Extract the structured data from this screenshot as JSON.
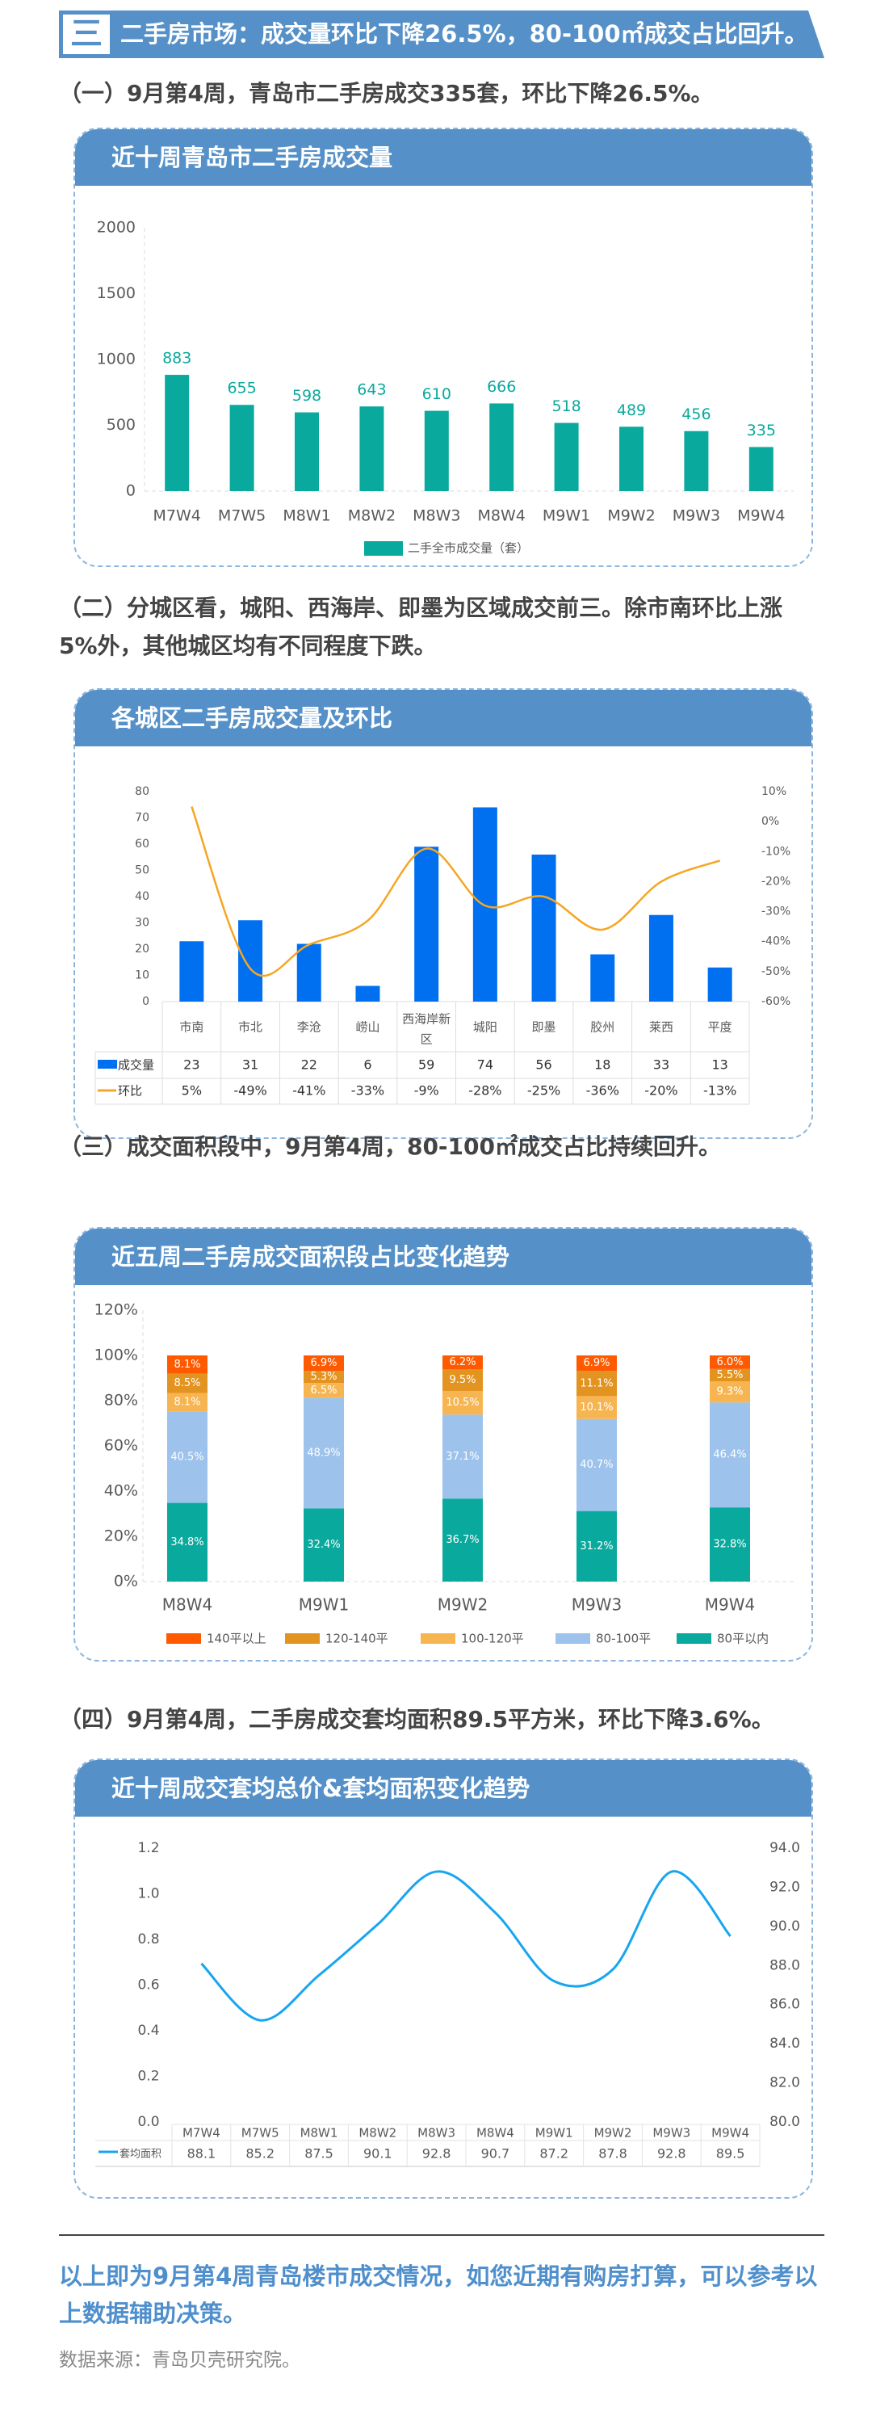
{
  "banner": {
    "number": "三",
    "title": "二手房市场：成交量环比下降26.5%，80-100㎡成交占比回升。"
  },
  "sections": [
    {
      "text": "（一）9月第4周，青岛市二手房成交335套，环比下降26.5%。",
      "card_title": "近十周青岛市二手房成交量"
    },
    {
      "text": "（二）分城区看，城阳、西海岸、即墨为区域成交前三。除市南环比上涨5%外，其他城区均有不同程度下跌。",
      "card_title": "各城区二手房成交量及环比"
    },
    {
      "text": "（三）成交面积段中，9月第4周，80-100㎡成交占比持续回升。",
      "card_title": "近五周二手房成交面积段占比变化趋势"
    },
    {
      "text": "（四）9月第4周，二手房成交套均面积89.5平方米，环比下降3.6%。",
      "card_title": "近十周成交套均总价&套均面积变化趋势"
    }
  ],
  "footer": {
    "conclusion": "以上即为9月第4周青岛楼市成交情况，如您近期有购房打算，可以参考以上数据辅助决策。",
    "source": "数据来源：青岛贝壳研究院。"
  },
  "colors": {
    "brand": "#5591c8",
    "teal": "#0aa99d",
    "blue": "#0070f0",
    "orange": "#f5a623",
    "line": "#18a5f0"
  },
  "chart_data": [
    {
      "type": "bar",
      "title": "近十周青岛市二手房成交量",
      "categories": [
        "M7W4",
        "M7W5",
        "M8W1",
        "M8W2",
        "M8W3",
        "M8W4",
        "M9W1",
        "M9W2",
        "M9W3",
        "M9W4"
      ],
      "series": [
        {
          "name": "二手全市成交量（套）",
          "values": [
            883,
            655,
            598,
            643,
            610,
            666,
            518,
            489,
            456,
            335
          ]
        }
      ],
      "yticks": [
        "0",
        "500",
        "1000",
        "1500",
        "2000"
      ],
      "ylim": [
        0,
        2000
      ],
      "legend": "bottom"
    },
    {
      "type": "bar",
      "title": "各城区二手房成交量及环比",
      "categories": [
        "市南",
        "市北",
        "李沧",
        "崂山",
        "西海岸新区",
        "城阳",
        "即墨",
        "胶州",
        "莱西",
        "平度"
      ],
      "series": [
        {
          "name": "成交量",
          "values": [
            23,
            31,
            22,
            6,
            59,
            74,
            56,
            18,
            33,
            13
          ]
        },
        {
          "name": "环比",
          "type": "line",
          "values": [
            5,
            -49,
            -41,
            -33,
            -9,
            -28,
            -25,
            -36,
            -20,
            -13
          ],
          "labels": [
            "5%",
            "-49%",
            "-41%",
            "-33%",
            "-9%",
            "-28%",
            "-25%",
            "-36%",
            "-20%",
            "-13%"
          ]
        }
      ],
      "yticks": [
        "0",
        "10",
        "20",
        "30",
        "40",
        "50",
        "60",
        "70",
        "80"
      ],
      "ylim": [
        0,
        80
      ],
      "y2ticks": [
        "10%",
        "0%",
        "-10%",
        "-20%",
        "-30%",
        "-40%",
        "-50%",
        "-60%"
      ],
      "y2lim": [
        -60,
        10
      ],
      "legend": "table"
    },
    {
      "type": "bar",
      "stacked": true,
      "title": "近五周二手房成交面积段占比变化趋势",
      "categories": [
        "M8W4",
        "M9W1",
        "M9W2",
        "M9W3",
        "M9W4"
      ],
      "series": [
        {
          "name": "80平以内",
          "values": [
            34.8,
            32.4,
            36.7,
            31.2,
            32.8
          ],
          "color": "#0aa99d"
        },
        {
          "name": "80-100平",
          "values": [
            40.5,
            48.9,
            37.1,
            40.7,
            46.4
          ],
          "color": "#9dc3ec"
        },
        {
          "name": "100-120平",
          "values": [
            8.1,
            6.5,
            10.5,
            10.1,
            9.3
          ],
          "color": "#f7b552"
        },
        {
          "name": "120-140平",
          "values": [
            8.5,
            5.3,
            9.5,
            11.1,
            5.5
          ],
          "color": "#e3931f"
        },
        {
          "name": "140平以上",
          "values": [
            8.1,
            6.9,
            6.2,
            6.9,
            6.0
          ],
          "color": "#ff5a00"
        }
      ],
      "legend_order": [
        "140平以上",
        "120-140平",
        "100-120平",
        "80-100平",
        "80平以内"
      ],
      "yticks": [
        "0%",
        "20%",
        "40%",
        "60%",
        "80%",
        "100%",
        "120%"
      ],
      "ylim": [
        0,
        120
      ],
      "legend": "bottom"
    },
    {
      "type": "line",
      "title": "近十周成交套均总价&套均面积变化趋势",
      "categories": [
        "M7W4",
        "M7W5",
        "M8W1",
        "M8W2",
        "M8W3",
        "M8W4",
        "M9W1",
        "M9W2",
        "M9W3",
        "M9W4"
      ],
      "series": [
        {
          "name": "套均面积",
          "values": [
            88.1,
            85.2,
            87.5,
            90.1,
            92.8,
            90.7,
            87.2,
            87.8,
            92.8,
            89.5
          ],
          "labels": [
            "88.1",
            "85.2",
            "87.5",
            "90.1",
            "92.8",
            "90.7",
            "87.2",
            "87.8",
            "92.8",
            "89.5"
          ]
        }
      ],
      "yticks": [
        "0.0",
        "0.2",
        "0.4",
        "0.6",
        "0.8",
        "1.0",
        "1.2"
      ],
      "ylim": [
        0,
        1.2
      ],
      "y2ticks": [
        "80.0",
        "82.0",
        "84.0",
        "86.0",
        "88.0",
        "90.0",
        "92.0",
        "94.0"
      ],
      "y2lim": [
        80,
        94
      ],
      "legend": "table"
    }
  ]
}
